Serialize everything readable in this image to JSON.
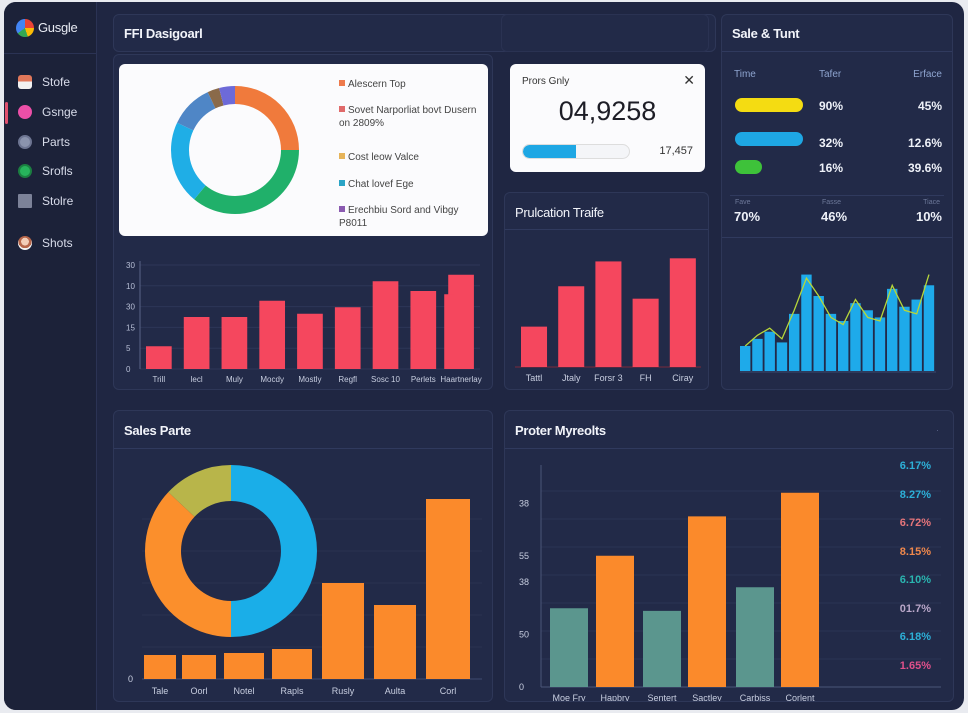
{
  "sidebar": {
    "brand": "Gusgle",
    "items": [
      {
        "label": "Stofe",
        "icon": "store-icon",
        "color": "#e0775a"
      },
      {
        "label": "Gsnge",
        "icon": "pink-dot-icon",
        "color": "#ec4fa8",
        "active": true
      },
      {
        "label": "Parts",
        "icon": "globe-icon",
        "color": "#8a93ad"
      },
      {
        "label": "Srofls",
        "icon": "whatsapp-icon",
        "color": "#27b35c"
      },
      {
        "label": "Stolre",
        "icon": "image-icon",
        "color": "#7c8298"
      },
      {
        "label": "Shots",
        "icon": "avatar-icon",
        "color": "#e8b49a"
      }
    ]
  },
  "header": {
    "title": "FFI Dasigoarl",
    "right_title": "Sale & Tunt"
  },
  "overview": {
    "legend": [
      {
        "label": "Alescern Top",
        "color": "#ee7a4c"
      },
      {
        "label": "Sovet Narporliat bovt Dusern on 2809%",
        "color": "#e06a6a"
      },
      {
        "label": "Cost leow Valce",
        "color": "#e6b45a"
      },
      {
        "label": "Chat lovef Ege",
        "color": "#2aa4c6"
      },
      {
        "label": "Erechbiu Sord and Vibgy P8011",
        "color": "#8a5ab0"
      }
    ]
  },
  "kpi": {
    "title": "Prors Gnly",
    "value": "04,9258",
    "side_value": "17,457",
    "progress": 0.5,
    "close_icon": "close-icon"
  },
  "publication": {
    "title": "Prulcation Traife"
  },
  "sale_trend": {
    "headers": [
      "Time",
      "Tafer",
      "Erface"
    ],
    "rows": [
      {
        "color": "#f4dc12",
        "fill": 1.0,
        "mid": "90%",
        "right": "45%"
      },
      {
        "color": "#1ea7e4",
        "fill": 1.0,
        "mid": "32%",
        "right": "12.6%"
      },
      {
        "color": "#3ec23a",
        "fill": 0.4,
        "mid": "16%",
        "right": "39.6%"
      }
    ],
    "footer": [
      {
        "label": "Fave",
        "value": "70%"
      },
      {
        "label": "Fasse",
        "value": "46%"
      },
      {
        "label": "Tiace",
        "value": "10%"
      }
    ]
  },
  "sales_panel": {
    "title": "Sales Parte"
  },
  "profit_panel": {
    "title": "Proter Myreolts",
    "percents": [
      {
        "value": "6.17%",
        "color": "#2db0d8"
      },
      {
        "value": "8.27%",
        "color": "#2db0d8"
      },
      {
        "value": "6.72%",
        "color": "#e6757a"
      },
      {
        "value": "8.15%",
        "color": "#f0884c"
      },
      {
        "value": "6.10%",
        "color": "#2ab5b0"
      },
      {
        "value": "01.7%",
        "color": "#b9a7c9"
      },
      {
        "value": "6.18%",
        "color": "#2db0d8"
      },
      {
        "value": "1.65%",
        "color": "#e0508a"
      }
    ]
  },
  "chart_data": [
    {
      "id": "overview-donut",
      "type": "pie",
      "title": "",
      "donut": true,
      "labels": [
        "Orange",
        "Green",
        "Blue",
        "Steel blue",
        "Brown",
        "Purple"
      ],
      "values": [
        25,
        36,
        21,
        11,
        3,
        4
      ],
      "colors": [
        "#f07a3c",
        "#20b06a",
        "#1faee6",
        "#4f86c6",
        "#8a6a4a",
        "#6d6ad8"
      ]
    },
    {
      "id": "red-bars-left",
      "type": "bar",
      "categories": [
        "Trill",
        "lecl",
        "Muly",
        "Mocdy",
        "Mostly",
        "Regfl",
        "Sosc 10",
        "Perlets",
        "Haartnerlay"
      ],
      "values": [
        7,
        16,
        16,
        21,
        17,
        19,
        27,
        24,
        29
      ],
      "step_values": [
        null,
        null,
        null,
        null,
        null,
        null,
        null,
        null,
        23
      ],
      "yticks": [
        "0",
        "5",
        "15",
        "30",
        "10",
        "30"
      ],
      "ylim": [
        0,
        32
      ],
      "color": "#f5475e"
    },
    {
      "id": "red-bars-right",
      "type": "bar",
      "title": "Prulcation Traife",
      "categories": [
        "Tattl",
        "Jtaly",
        "Forsr 3",
        "FH",
        "Ciray"
      ],
      "values": [
        13,
        26,
        34,
        22,
        35
      ],
      "ylim": [
        0,
        38
      ],
      "color": "#f5475e"
    },
    {
      "id": "blue-bars-trend",
      "type": "bar",
      "values": [
        7,
        9,
        11,
        8,
        16,
        27,
        21,
        16,
        14,
        19,
        17,
        15,
        23,
        18,
        20,
        24
      ],
      "line": [
        7,
        10,
        12,
        9,
        17,
        26,
        21,
        15,
        13,
        20,
        15,
        14,
        24,
        17,
        16,
        27
      ],
      "ylim": [
        0,
        28
      ],
      "color": "#1eaaea",
      "line_color": "#b6d63a"
    },
    {
      "id": "sales-parte",
      "type": "bar",
      "title": "Sales Parte",
      "categories": [
        "Tale",
        "Oorl",
        "Notel",
        "Rapls",
        "Rusly",
        "Aulta",
        "Corl"
      ],
      "values": [
        1.2,
        1.2,
        1.3,
        1.5,
        4.8,
        3.7,
        9.0
      ],
      "ylim": [
        0,
        10
      ],
      "yticks": [
        "0"
      ],
      "color": "#fb8a2b",
      "donut": {
        "values": [
          50,
          37,
          13
        ],
        "colors": [
          "#1aaee8",
          "#fb8f2c",
          "#b8b54a"
        ]
      }
    },
    {
      "id": "proter-myreolts",
      "type": "bar",
      "title": "Proter Myreolts",
      "categories": [
        "Moe Fry",
        "Hapbry",
        "Sentert",
        "Sactley",
        "Carbiss",
        "Corlent"
      ],
      "values": [
        15,
        25,
        14.5,
        32.5,
        19,
        37
      ],
      "colors": [
        "#5b968e",
        "#fb8a2b",
        "#5b968e",
        "#fb8a2b",
        "#5b968e",
        "#fb8a2b"
      ],
      "yticks": [
        {
          "label": "0",
          "v": 0
        },
        {
          "label": "50",
          "v": 10
        },
        {
          "label": "38",
          "v": 20
        },
        {
          "label": "55",
          "v": 25
        },
        {
          "label": "38",
          "v": 35
        }
      ],
      "ylim": [
        0,
        40
      ]
    }
  ]
}
